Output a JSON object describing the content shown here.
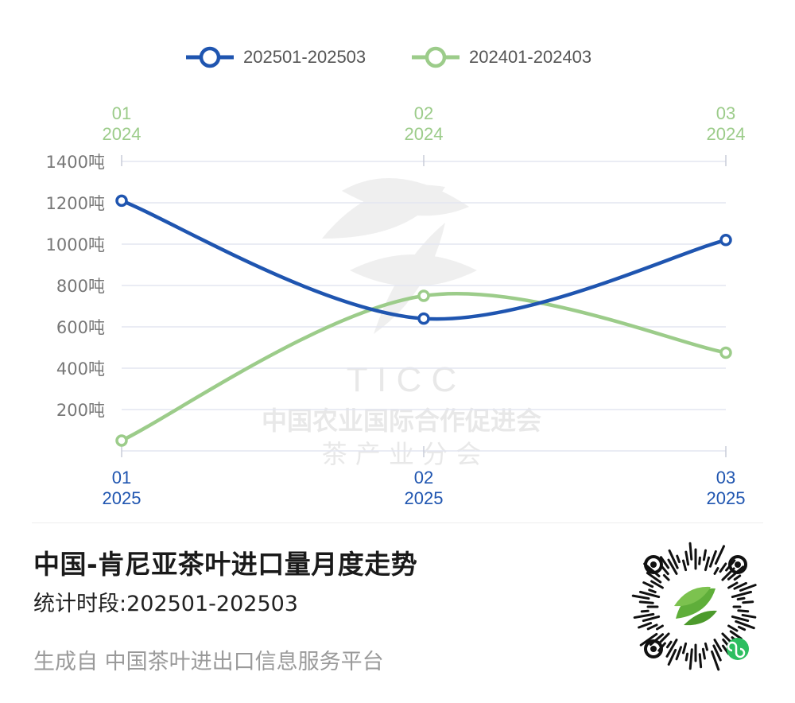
{
  "legend": {
    "series1": "202501-202503",
    "series2": "202401-202403"
  },
  "watermark": {
    "letters": "T I C C",
    "line1": "中国农业国际合作促进会",
    "line2": "茶 产 业 分 会"
  },
  "footer": {
    "title": "中国-肯尼亚茶叶进口量月度走势",
    "period": "统计时段:202501-202503",
    "source": "生成自 中国茶叶进出口信息服务平台"
  },
  "colors": {
    "series1": "#1f55b0",
    "series2": "#9ccc8a",
    "grid": "#e3e6f0",
    "axis_label": "#777777"
  },
  "qr_icon": "wechat-mini-program-qr-code",
  "chart_data": {
    "type": "line",
    "y_ticks": [
      {
        "value": 200,
        "label": "200吨"
      },
      {
        "value": 400,
        "label": "400吨"
      },
      {
        "value": 600,
        "label": "600吨"
      },
      {
        "value": 800,
        "label": "800吨"
      },
      {
        "value": 1000,
        "label": "1000吨"
      },
      {
        "value": 1200,
        "label": "1200吨"
      },
      {
        "value": 1400,
        "label": "1400吨"
      }
    ],
    "ylim": [
      0,
      1400
    ],
    "x_top_labels": [
      [
        "01",
        "2024"
      ],
      [
        "02",
        "2024"
      ],
      [
        "03",
        "2024"
      ]
    ],
    "x_bottom_labels": [
      [
        "01",
        "2025"
      ],
      [
        "02",
        "2025"
      ],
      [
        "03",
        "2025"
      ]
    ],
    "series": [
      {
        "name": "202501-202503",
        "values": [
          1210,
          640,
          1020
        ]
      },
      {
        "name": "202401-202403",
        "values": [
          50,
          750,
          475
        ]
      }
    ],
    "grid": true,
    "legend_position": "top-center"
  }
}
